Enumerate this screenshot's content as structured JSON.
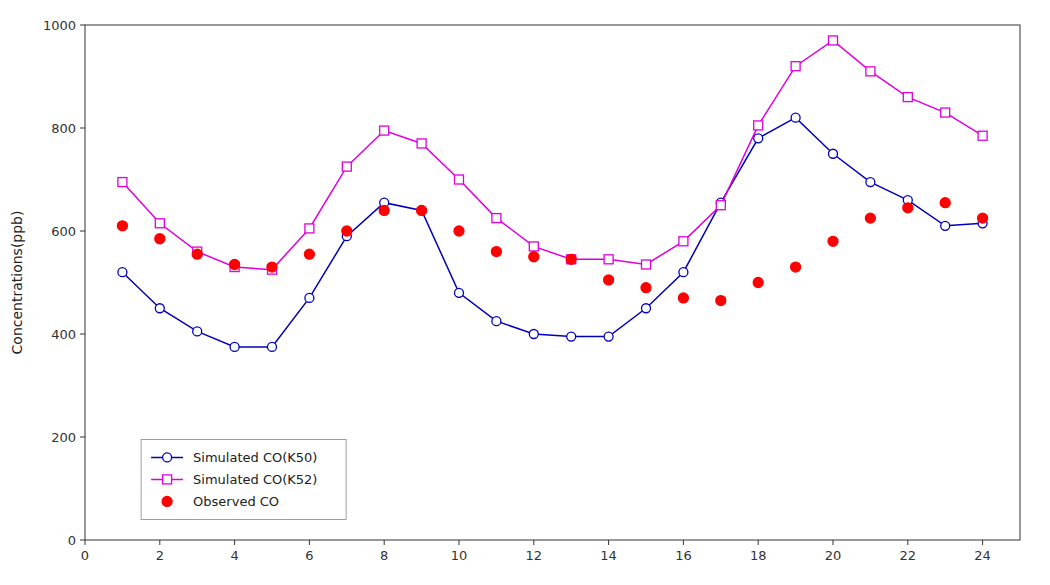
{
  "chart_data": {
    "type": "line",
    "ylabel": "Concentrations(ppb)",
    "x": [
      1,
      2,
      3,
      4,
      5,
      6,
      7,
      8,
      9,
      10,
      11,
      12,
      13,
      14,
      15,
      16,
      17,
      18,
      19,
      20,
      21,
      22,
      23,
      24
    ],
    "series": [
      {
        "name": "Simulated CO(K50)",
        "color": "#0000bb",
        "marker": "open-circle",
        "line_style": "solid",
        "values": [
          520,
          450,
          405,
          375,
          375,
          470,
          590,
          655,
          640,
          480,
          425,
          400,
          395,
          395,
          450,
          520,
          655,
          780,
          820,
          750,
          695,
          660,
          610,
          615
        ]
      },
      {
        "name": "Simulated CO(K52)",
        "color": "#dd00dd",
        "marker": "open-square",
        "line_style": "solid",
        "values": [
          695,
          615,
          560,
          530,
          525,
          605,
          725,
          795,
          770,
          700,
          625,
          570,
          545,
          545,
          535,
          580,
          650,
          805,
          920,
          970,
          910,
          860,
          830,
          785
        ]
      },
      {
        "name": "Observed CO",
        "color": "#ff0000",
        "marker": "circle",
        "line_style": "none",
        "values": [
          610,
          585,
          555,
          535,
          530,
          555,
          600,
          640,
          640,
          600,
          560,
          550,
          545,
          505,
          490,
          470,
          465,
          500,
          530,
          580,
          625,
          645,
          655,
          625
        ]
      }
    ],
    "xlim": [
      0,
      25
    ],
    "xticks": [
      0,
      2,
      4,
      6,
      8,
      10,
      12,
      14,
      16,
      18,
      20,
      22,
      24
    ],
    "ylim": [
      0,
      1000
    ],
    "yticks": [
      0,
      200,
      400,
      600,
      800,
      1000
    ],
    "grid": false,
    "legend": "lower left"
  }
}
